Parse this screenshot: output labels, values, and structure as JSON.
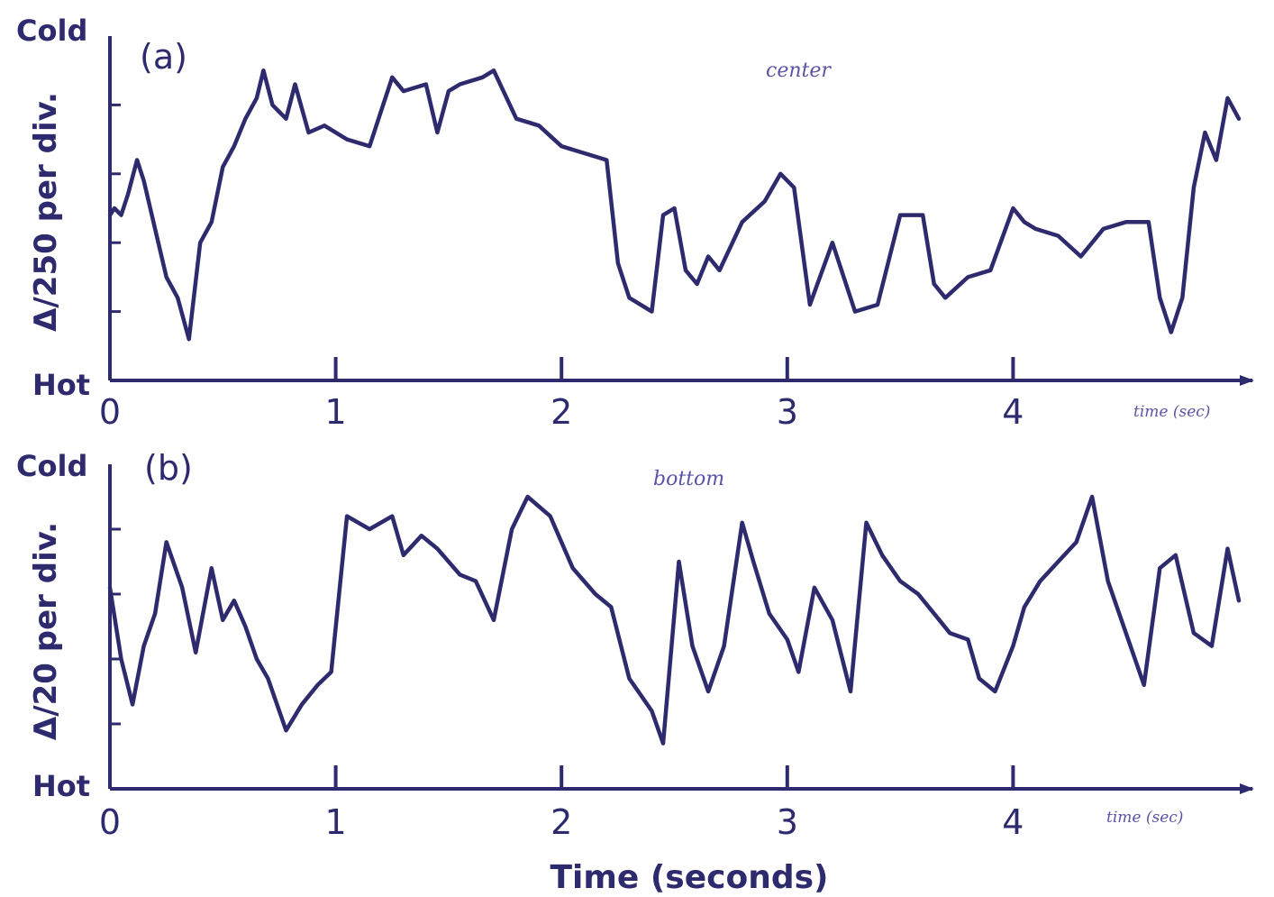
{
  "chart_data": [
    {
      "type": "line",
      "panel_label": "(a)",
      "annotation": "center",
      "ylabel": "Δ/250 per div.",
      "y_top_label": "Cold",
      "y_bottom_label": "Hot",
      "xlabel": "time (sec)",
      "xlim": [
        0,
        5
      ],
      "ylim": [
        0,
        5
      ],
      "x_ticks": [
        0,
        1,
        2,
        3,
        4
      ],
      "x": [
        0.0,
        0.02,
        0.05,
        0.08,
        0.12,
        0.15,
        0.2,
        0.25,
        0.3,
        0.35,
        0.4,
        0.45,
        0.5,
        0.55,
        0.6,
        0.65,
        0.68,
        0.72,
        0.78,
        0.82,
        0.88,
        0.95,
        1.05,
        1.15,
        1.2,
        1.25,
        1.3,
        1.4,
        1.45,
        1.5,
        1.55,
        1.65,
        1.7,
        1.8,
        1.9,
        2.0,
        2.1,
        2.2,
        2.25,
        2.3,
        2.4,
        2.45,
        2.5,
        2.55,
        2.6,
        2.65,
        2.7,
        2.8,
        2.9,
        2.97,
        3.03,
        3.1,
        3.2,
        3.3,
        3.4,
        3.5,
        3.6,
        3.65,
        3.7,
        3.8,
        3.9,
        4.0,
        4.05,
        4.1,
        4.2,
        4.3,
        4.4,
        4.5,
        4.6,
        4.65,
        4.7,
        4.75,
        4.8,
        4.85,
        4.9,
        4.95,
        5.0
      ],
      "values": [
        2.4,
        2.5,
        2.4,
        2.7,
        3.2,
        2.9,
        2.2,
        1.5,
        1.2,
        0.6,
        2.0,
        2.3,
        3.1,
        3.4,
        3.8,
        4.1,
        4.5,
        4.0,
        3.8,
        4.3,
        3.6,
        3.7,
        3.5,
        3.4,
        3.9,
        4.4,
        4.2,
        4.3,
        3.6,
        4.2,
        4.3,
        4.4,
        4.5,
        3.8,
        3.7,
        3.4,
        3.3,
        3.2,
        1.7,
        1.2,
        1.0,
        2.4,
        2.5,
        1.6,
        1.4,
        1.8,
        1.6,
        2.3,
        2.6,
        3.0,
        2.8,
        1.1,
        2.0,
        1.0,
        1.1,
        2.4,
        2.4,
        1.4,
        1.2,
        1.5,
        1.6,
        2.5,
        2.3,
        2.2,
        2.1,
        1.8,
        2.2,
        2.3,
        2.3,
        1.2,
        0.7,
        1.2,
        2.8,
        3.6,
        3.2,
        4.1,
        3.8
      ]
    },
    {
      "type": "line",
      "panel_label": "(b)",
      "annotation": "bottom",
      "ylabel": "Δ/20 per div.",
      "y_top_label": "Cold",
      "y_bottom_label": "Hot",
      "xlabel": "time (sec)",
      "xlim": [
        0,
        5
      ],
      "ylim": [
        0,
        5
      ],
      "x_ticks": [
        0,
        1,
        2,
        3,
        4
      ],
      "x": [
        0.0,
        0.05,
        0.1,
        0.15,
        0.2,
        0.25,
        0.32,
        0.38,
        0.45,
        0.5,
        0.55,
        0.6,
        0.65,
        0.7,
        0.78,
        0.85,
        0.92,
        0.98,
        1.05,
        1.15,
        1.25,
        1.3,
        1.38,
        1.45,
        1.55,
        1.62,
        1.7,
        1.78,
        1.85,
        1.95,
        2.05,
        2.15,
        2.22,
        2.3,
        2.4,
        2.45,
        2.52,
        2.58,
        2.65,
        2.72,
        2.8,
        2.85,
        2.92,
        3.0,
        3.05,
        3.12,
        3.2,
        3.28,
        3.35,
        3.42,
        3.5,
        3.58,
        3.65,
        3.72,
        3.8,
        3.85,
        3.92,
        4.0,
        4.05,
        4.12,
        4.2,
        4.28,
        4.35,
        4.42,
        4.5,
        4.58,
        4.65,
        4.72,
        4.8,
        4.88,
        4.95,
        5.0
      ],
      "values": [
        3.1,
        2.0,
        1.3,
        2.2,
        2.7,
        3.8,
        3.1,
        2.1,
        3.4,
        2.6,
        2.9,
        2.5,
        2.0,
        1.7,
        0.9,
        1.3,
        1.6,
        1.8,
        4.2,
        4.0,
        4.2,
        3.6,
        3.9,
        3.7,
        3.3,
        3.2,
        2.6,
        4.0,
        4.5,
        4.2,
        3.4,
        3.0,
        2.8,
        1.7,
        1.2,
        0.7,
        3.5,
        2.2,
        1.5,
        2.2,
        4.1,
        3.5,
        2.7,
        2.3,
        1.8,
        3.1,
        2.6,
        1.5,
        4.1,
        3.6,
        3.2,
        3.0,
        2.7,
        2.4,
        2.3,
        1.7,
        1.5,
        2.2,
        2.8,
        3.2,
        3.5,
        3.8,
        4.5,
        3.2,
        2.4,
        1.6,
        3.4,
        3.6,
        2.4,
        2.2,
        3.7,
        2.9
      ]
    }
  ],
  "shared_xlabel": "Time (seconds)"
}
